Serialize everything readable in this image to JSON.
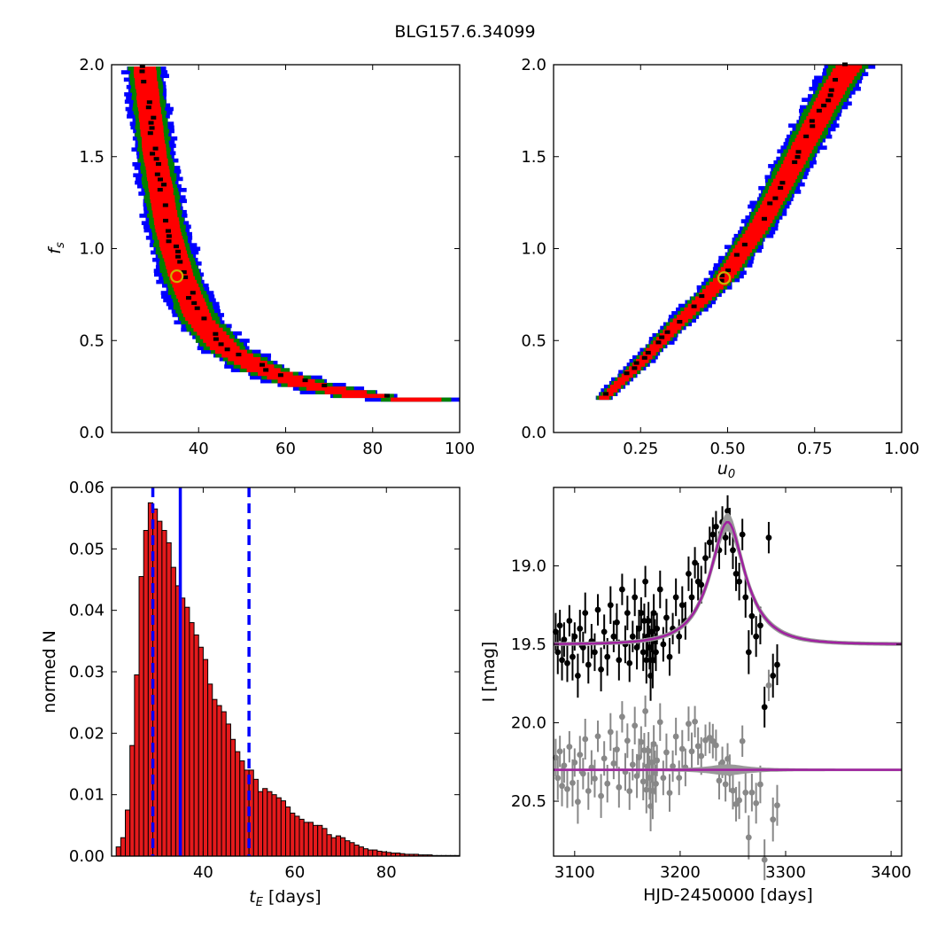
{
  "figure": {
    "title": "BLG157.6.34099"
  },
  "colors": {
    "contour_outer": "#0000ff",
    "contour_mid": "#008000",
    "contour_inner": "#ff0000",
    "contour_core": "#000000",
    "best_fit_marker": "#c8b400",
    "histogram_bar": "#e41a1c",
    "median_line": "#0000ff",
    "model_curve": "#a020a0",
    "data_points": "#000000",
    "residual_points": "#888888"
  },
  "chart_data": [
    {
      "id": "fs_vs_tE",
      "type": "heatmap",
      "xlabel": "",
      "ylabel": "f_s",
      "xlim": [
        20,
        100
      ],
      "ylim": [
        0,
        2
      ],
      "xticks": [
        "40",
        "60",
        "80",
        "100"
      ],
      "yticks": [
        "0.0",
        "0.5",
        "1.0",
        "1.5",
        "2.0"
      ],
      "best_fit": {
        "x": 35,
        "y": 0.85
      },
      "band_ridge": [
        [
          27.5,
          2.0
        ],
        [
          30,
          1.5
        ],
        [
          33,
          1.1
        ],
        [
          36,
          0.85
        ],
        [
          40,
          0.62
        ],
        [
          46,
          0.46
        ],
        [
          55,
          0.34
        ],
        [
          65,
          0.26
        ],
        [
          78,
          0.2
        ],
        [
          96,
          0.17
        ]
      ]
    },
    {
      "id": "fs_vs_u0",
      "type": "heatmap",
      "xlabel": "u_0",
      "ylabel": "",
      "xlim": [
        0,
        1
      ],
      "ylim": [
        0,
        2
      ],
      "xticks": [
        "0.25",
        "0.50",
        "0.75",
        "1.00"
      ],
      "yticks": [
        "0.0",
        "0.5",
        "1.0",
        "1.5",
        "2.0"
      ],
      "best_fit": {
        "x": 0.49,
        "y": 0.84
      },
      "band_ridge": [
        [
          0.14,
          0.18
        ],
        [
          0.25,
          0.38
        ],
        [
          0.36,
          0.6
        ],
        [
          0.49,
          0.84
        ],
        [
          0.6,
          1.15
        ],
        [
          0.7,
          1.5
        ],
        [
          0.8,
          1.85
        ],
        [
          0.85,
          2.0
        ]
      ]
    },
    {
      "id": "tE_histogram",
      "type": "bar",
      "xlabel": "t_E [days]",
      "ylabel": "normed N",
      "xlim": [
        20,
        96
      ],
      "ylim": [
        0,
        0.06
      ],
      "xticks": [
        "40",
        "60",
        "80"
      ],
      "yticks": [
        "0.00",
        "0.01",
        "0.02",
        "0.03",
        "0.04",
        "0.05",
        "0.06"
      ],
      "bin_start": 21,
      "bin_width": 1,
      "values": [
        0.0015,
        0.003,
        0.0075,
        0.018,
        0.0295,
        0.0455,
        0.053,
        0.0575,
        0.0565,
        0.0545,
        0.053,
        0.051,
        0.047,
        0.044,
        0.042,
        0.0405,
        0.038,
        0.036,
        0.034,
        0.032,
        0.028,
        0.0255,
        0.0245,
        0.0235,
        0.0215,
        0.019,
        0.017,
        0.0155,
        0.014,
        0.014,
        0.0125,
        0.0105,
        0.011,
        0.0105,
        0.01,
        0.0095,
        0.009,
        0.008,
        0.007,
        0.0065,
        0.006,
        0.0055,
        0.0055,
        0.005,
        0.005,
        0.0045,
        0.0035,
        0.003,
        0.0033,
        0.003,
        0.0025,
        0.0022,
        0.0018,
        0.0015,
        0.0012,
        0.001,
        0.001,
        0.0008,
        0.0007,
        0.0006,
        0.0005,
        0.0005,
        0.0004,
        0.0003,
        0.0003,
        0.0003,
        0.0002,
        0.0002,
        0.0002,
        0.0001,
        0.0001,
        0.0001,
        0.0001,
        0.0001,
        0.0001
      ],
      "median": 35,
      "interval": [
        29,
        50
      ]
    },
    {
      "id": "light_curve",
      "type": "scatter",
      "xlabel": "HJD-2450000 [days]",
      "ylabel": "I [mag]",
      "xlim": [
        3080,
        3410
      ],
      "ylim": [
        20.85,
        18.5
      ],
      "xticks": [
        "3100",
        "3200",
        "3300",
        "3400"
      ],
      "yticks": [
        "19.0",
        "19.5",
        "20.0",
        "20.5"
      ],
      "model": {
        "baseline": 19.5,
        "peak_mag": 18.72,
        "t0": 3245,
        "tE": 35,
        "u0": 0.49
      },
      "residual_offset": 20.3,
      "points": [
        [
          3082,
          19.42,
          0.12
        ],
        [
          3084,
          19.55,
          0.14
        ],
        [
          3086,
          19.38,
          0.1
        ],
        [
          3088,
          19.6,
          0.13
        ],
        [
          3090,
          19.47,
          0.11
        ],
        [
          3093,
          19.62,
          0.12
        ],
        [
          3095,
          19.35,
          0.1
        ],
        [
          3098,
          19.58,
          0.15
        ],
        [
          3100,
          19.45,
          0.09
        ],
        [
          3103,
          19.7,
          0.14
        ],
        [
          3105,
          19.4,
          0.12
        ],
        [
          3108,
          19.52,
          0.1
        ],
        [
          3110,
          19.3,
          0.13
        ],
        [
          3113,
          19.63,
          0.12
        ],
        [
          3116,
          19.48,
          0.11
        ],
        [
          3119,
          19.55,
          0.12
        ],
        [
          3122,
          19.28,
          0.1
        ],
        [
          3125,
          19.66,
          0.14
        ],
        [
          3128,
          19.42,
          0.11
        ],
        [
          3131,
          19.58,
          0.12
        ],
        [
          3134,
          19.25,
          0.12
        ],
        [
          3137,
          19.45,
          0.1
        ],
        [
          3140,
          19.36,
          0.12
        ],
        [
          3142,
          19.6,
          0.13
        ],
        [
          3145,
          19.15,
          0.1
        ],
        [
          3148,
          19.5,
          0.12
        ],
        [
          3150,
          19.3,
          0.11
        ],
        [
          3152,
          19.62,
          0.12
        ],
        [
          3155,
          19.45,
          0.1
        ],
        [
          3157,
          19.2,
          0.12
        ],
        [
          3159,
          19.52,
          0.14
        ],
        [
          3161,
          19.4,
          0.12
        ],
        [
          3163,
          19.3,
          0.1
        ],
        [
          3165,
          19.55,
          0.12
        ],
        [
          3166,
          19.35,
          0.11
        ],
        [
          3167,
          19.1,
          0.1
        ],
        [
          3168,
          19.6,
          0.15
        ],
        [
          3169,
          19.45,
          0.13
        ],
        [
          3170,
          19.35,
          0.12
        ],
        [
          3171,
          19.52,
          0.14
        ],
        [
          3172,
          19.7,
          0.16
        ],
        [
          3173,
          19.42,
          0.13
        ],
        [
          3174,
          19.6,
          0.18
        ],
        [
          3175,
          19.3,
          0.12
        ],
        [
          3176,
          19.48,
          0.14
        ],
        [
          3177,
          19.55,
          0.12
        ],
        [
          3178,
          19.4,
          0.1
        ],
        [
          3181,
          19.15,
          0.12
        ],
        [
          3184,
          19.5,
          0.11
        ],
        [
          3187,
          19.33,
          0.12
        ],
        [
          3190,
          19.58,
          0.12
        ],
        [
          3193,
          19.4,
          0.1
        ],
        [
          3196,
          19.2,
          0.12
        ],
        [
          3199,
          19.45,
          0.11
        ],
        [
          3202,
          19.25,
          0.12
        ],
        [
          3205,
          19.35,
          0.12
        ],
        [
          3208,
          19.05,
          0.11
        ],
        [
          3211,
          19.2,
          0.12
        ],
        [
          3214,
          18.98,
          0.1
        ],
        [
          3217,
          19.1,
          0.12
        ],
        [
          3220,
          19.12,
          0.12
        ],
        [
          3224,
          18.95,
          0.1
        ],
        [
          3228,
          18.85,
          0.1
        ],
        [
          3231,
          18.8,
          0.11
        ],
        [
          3234,
          18.75,
          0.1
        ],
        [
          3237,
          18.9,
          0.12
        ],
        [
          3240,
          18.72,
          0.1
        ],
        [
          3243,
          18.82,
          0.11
        ],
        [
          3245,
          18.65,
          0.1
        ],
        [
          3247,
          18.75,
          0.12
        ],
        [
          3250,
          18.9,
          0.12
        ],
        [
          3253,
          19.05,
          0.11
        ],
        [
          3256,
          19.1,
          0.12
        ],
        [
          3259,
          18.8,
          0.1
        ],
        [
          3262,
          19.2,
          0.13
        ],
        [
          3265,
          19.55,
          0.14
        ],
        [
          3268,
          19.32,
          0.12
        ],
        [
          3272,
          19.45,
          0.13
        ],
        [
          3276,
          19.38,
          0.12
        ],
        [
          3280,
          19.9,
          0.13
        ],
        [
          3284,
          18.82,
          0.1
        ],
        [
          3288,
          19.7,
          0.14
        ],
        [
          3292,
          19.63,
          0.13
        ]
      ]
    }
  ]
}
